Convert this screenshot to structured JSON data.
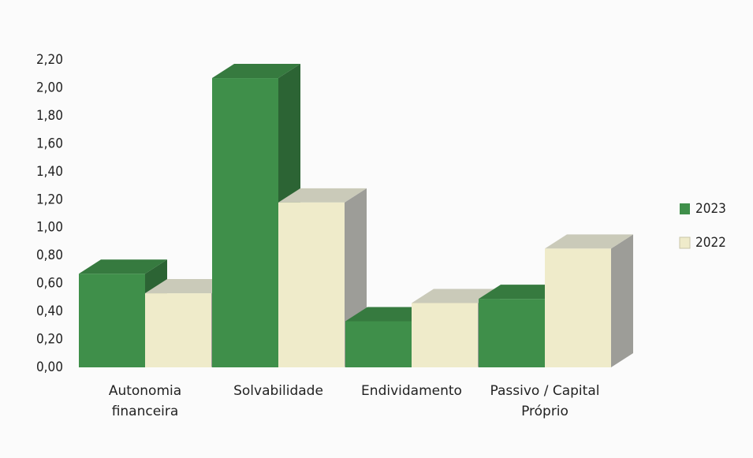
{
  "chart_data": {
    "type": "bar3d",
    "categories": [
      "Autonomia financeira",
      "Solvabilidade",
      "Endividamento",
      "Passivo / Capital Próprio"
    ],
    "series": [
      {
        "name": "2023",
        "color": "#3f8f4a",
        "values": [
          0.67,
          2.07,
          0.33,
          0.49
        ]
      },
      {
        "name": "2022",
        "color": "#efebca",
        "values": [
          0.53,
          1.18,
          0.46,
          0.85
        ]
      }
    ],
    "ylim": [
      0,
      2.2
    ],
    "yticks": [
      {
        "value": 0,
        "label": "0,00"
      },
      {
        "value": 0.2,
        "label": "0,20"
      },
      {
        "value": 0.4,
        "label": "0,40"
      },
      {
        "value": 0.6,
        "label": "0,60"
      },
      {
        "value": 0.8,
        "label": "0,80"
      },
      {
        "value": 1.0,
        "label": "1,00"
      },
      {
        "value": 1.2,
        "label": "1,20"
      },
      {
        "value": 1.4,
        "label": "1,40"
      },
      {
        "value": 1.6,
        "label": "1,60"
      },
      {
        "value": 1.8,
        "label": "1,80"
      },
      {
        "value": 2.0,
        "label": "2,00"
      },
      {
        "value": 2.2,
        "label": "2,20"
      }
    ],
    "grid": false,
    "legend": "right"
  }
}
